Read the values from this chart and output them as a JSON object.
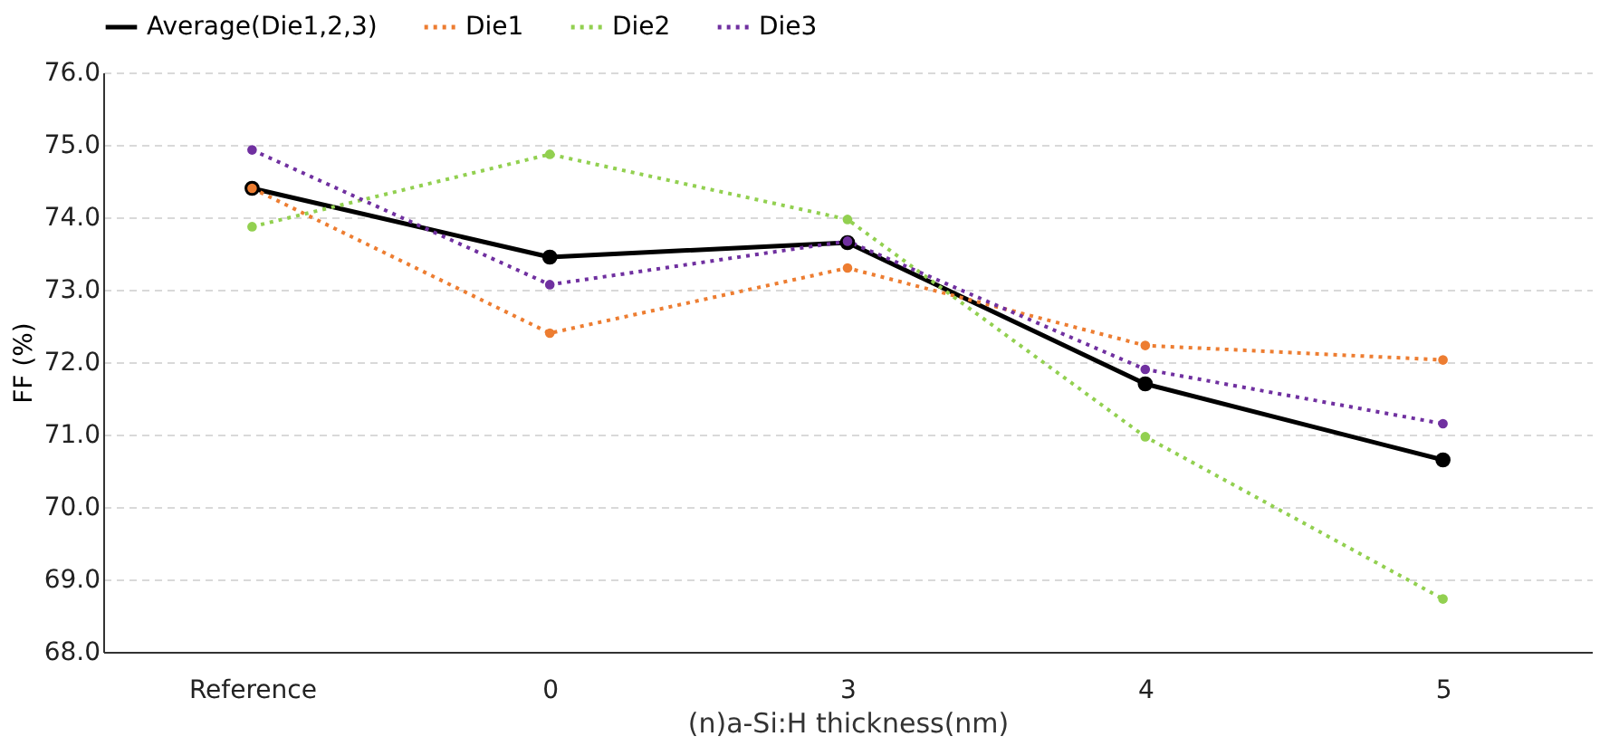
{
  "chart_data": {
    "type": "line",
    "xlabel": "(n)a-Si:H thickness(nm)",
    "ylabel": "FF (%)",
    "categories": [
      "Reference",
      "0",
      "3",
      "4",
      "5"
    ],
    "series": [
      {
        "name": "Average(Die1,2,3)",
        "color": "#000000",
        "line_style": "solid",
        "values": [
          74.4,
          73.45,
          73.65,
          71.7,
          70.65
        ]
      },
      {
        "name": "Die1",
        "color": "#ed7d31",
        "line_style": "dotted",
        "values": [
          74.4,
          72.4,
          73.3,
          72.23,
          72.03
        ]
      },
      {
        "name": "Die2",
        "color": "#92d050",
        "line_style": "dotted",
        "values": [
          73.87,
          74.87,
          73.97,
          70.97,
          68.73
        ]
      },
      {
        "name": "Die3",
        "color": "#7030a0",
        "line_style": "dotted",
        "values": [
          74.93,
          73.07,
          73.67,
          71.9,
          71.15
        ]
      }
    ],
    "ylim": [
      68,
      76
    ],
    "yticks": [
      {
        "value": 68,
        "label": "68.0"
      },
      {
        "value": 69,
        "label": "69.0"
      },
      {
        "value": 70,
        "label": "70.0"
      },
      {
        "value": 71,
        "label": "71.0"
      },
      {
        "value": 72,
        "label": "72.0"
      },
      {
        "value": 73,
        "label": "73.0"
      },
      {
        "value": 74,
        "label": "74.0"
      },
      {
        "value": 75,
        "label": "75.0"
      },
      {
        "value": 76,
        "label": "76.0"
      }
    ],
    "grid": "y",
    "legend": "top",
    "marker": "circle"
  }
}
